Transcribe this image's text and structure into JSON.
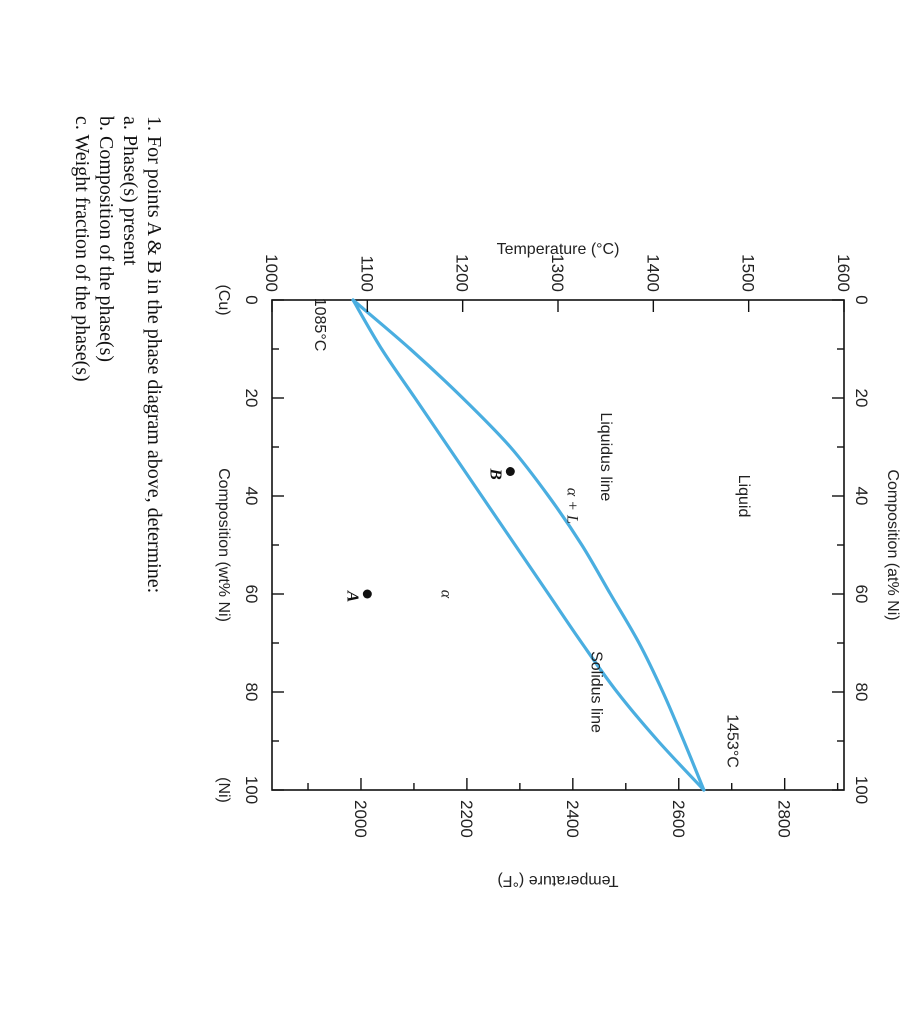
{
  "chart_data": {
    "type": "line",
    "xlabel": "Composition (wt% Ni)",
    "x2label": "Composition (at% Ni)",
    "ylabel": "Temperature (°C)",
    "y2label": "Temperature (°F)",
    "xlim": [
      0,
      100
    ],
    "ylim": [
      1000,
      1600
    ],
    "y2lim": [
      1832,
      2912
    ],
    "x_ticks": [
      0,
      20,
      40,
      60,
      80,
      100
    ],
    "x_tick_labels": [
      "0",
      "20",
      "40",
      "60",
      "80",
      "100"
    ],
    "x2_ticks": [
      0,
      20,
      40,
      60,
      80,
      100
    ],
    "x2_tick_labels": [
      "0",
      "20",
      "40",
      "60",
      "80",
      "100"
    ],
    "y_ticks": [
      1000,
      1100,
      1200,
      1300,
      1400,
      1500,
      1600
    ],
    "y_tick_labels": [
      "1000",
      "1100",
      "1200",
      "1300",
      "1400",
      "1500",
      "1600"
    ],
    "y2_ticks": [
      2000,
      2200,
      2400,
      2600,
      2800
    ],
    "y2_tick_labels": [
      "2000",
      "2200",
      "2400",
      "2600",
      "2800"
    ],
    "x_end_labels": {
      "left": "(Cu)",
      "right": "(Ni)"
    },
    "line_color": "#4aaee0",
    "series": [
      {
        "name": "Liquidus line",
        "x": [
          0,
          10,
          20,
          30,
          40,
          50,
          60,
          70,
          80,
          90,
          100
        ],
        "y": [
          1085,
          1145,
          1200,
          1250,
          1290,
          1325,
          1355,
          1385,
          1410,
          1432,
          1453
        ]
      },
      {
        "name": "Solidus line",
        "x": [
          0,
          10,
          20,
          30,
          40,
          50,
          60,
          70,
          80,
          90,
          100
        ],
        "y": [
          1085,
          1115,
          1150,
          1185,
          1220,
          1255,
          1290,
          1325,
          1362,
          1405,
          1453
        ]
      }
    ],
    "points": [
      {
        "label": "A",
        "x": 60,
        "y": 1100
      },
      {
        "label": "B",
        "x": 35,
        "y": 1250
      }
    ],
    "annotations": {
      "liquid": "Liquid",
      "alpha": "α",
      "alpha_plus_l": "α + L",
      "liquidus": "Liquidus line",
      "solidus": "Solidus line",
      "cu_melting": "1085°C",
      "ni_melting": "1453°C"
    }
  },
  "question": {
    "line1": "1.  For points A & B in the phase diagram above, determine:",
    "line2": "a.   Phase(s) present",
    "line3": "b.   Composition of the phase(s)",
    "line4": "c.   Weight fraction of the phase(s)"
  }
}
